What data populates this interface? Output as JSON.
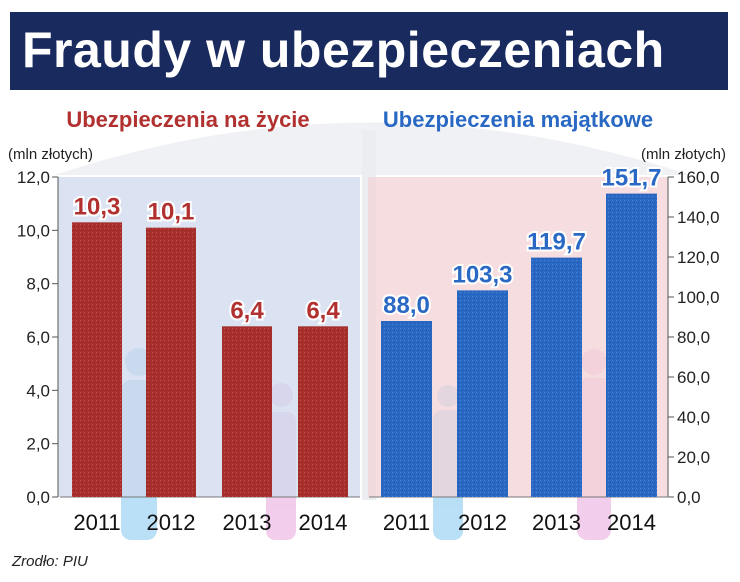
{
  "title": "Fraudy w ubezpieczeniach",
  "source": "Zrodło: PIU",
  "colors": {
    "title_bg": "#182a5e",
    "life": "#a8302c",
    "property": "#2a69c3",
    "life_panel": "#cfd8ec",
    "property_panel": "#f3d3d6"
  },
  "chart_data": [
    {
      "type": "bar",
      "title": "Ubezpieczenia na życie",
      "ylabel": "(mln złotych)",
      "ylim": [
        0,
        12
      ],
      "y_ticks": [
        "0,0",
        "2,0",
        "4,0",
        "6,0",
        "8,0",
        "10,0",
        "12,0"
      ],
      "categories": [
        "2011",
        "2012",
        "2013",
        "2014"
      ],
      "values": [
        10.3,
        10.1,
        6.4,
        6.4
      ],
      "value_labels": [
        "10,3",
        "10,1",
        "6,4",
        "6,4"
      ],
      "axis_side": "left",
      "grid": false
    },
    {
      "type": "bar",
      "title": "Ubezpieczenia majątkowe",
      "ylabel": "(mln złotych)",
      "ylim": [
        0,
        160
      ],
      "y_ticks": [
        "0,0",
        "20,0",
        "40,0",
        "60,0",
        "80,0",
        "100,0",
        "120,0",
        "140,0",
        "160,0"
      ],
      "categories": [
        "2011",
        "2012",
        "2013",
        "2014"
      ],
      "values": [
        88.0,
        103.3,
        119.7,
        151.7
      ],
      "value_labels": [
        "88,0",
        "103,3",
        "119,7",
        "151,7"
      ],
      "axis_side": "right",
      "grid": false
    }
  ]
}
